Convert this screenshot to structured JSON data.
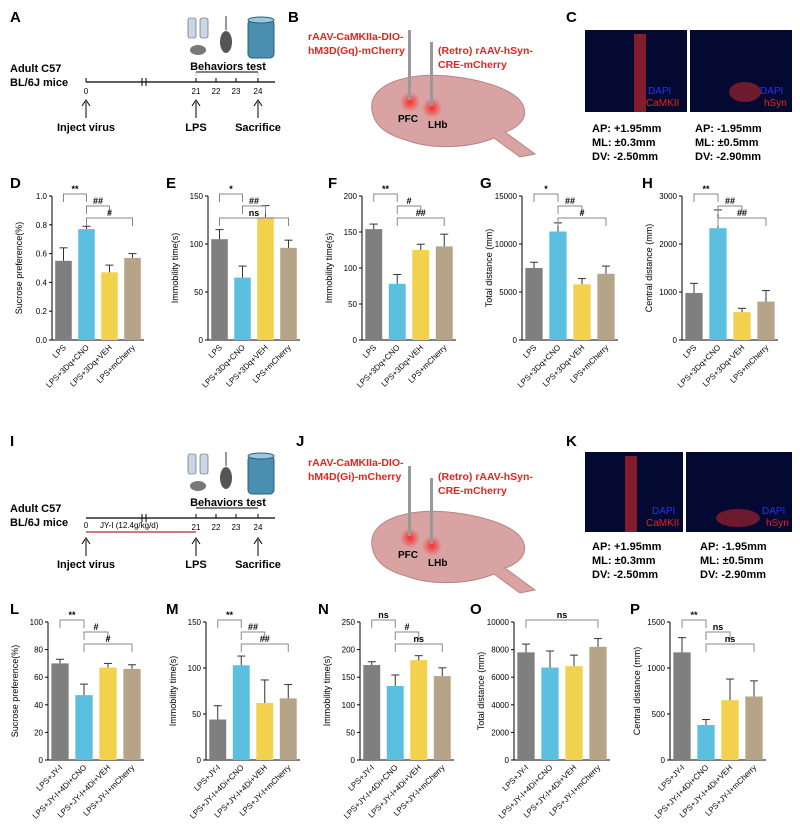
{
  "panel_letters": [
    "A",
    "B",
    "C",
    "D",
    "E",
    "F",
    "G",
    "H",
    "I",
    "J",
    "K",
    "L",
    "M",
    "N",
    "O",
    "P"
  ],
  "timeline_top": {
    "mouse": "Adult C57",
    "mouse2": "BL/6J mice",
    "behaviors": "Behaviors test",
    "days": [
      "0",
      "21",
      "22",
      "23",
      "24"
    ],
    "events": [
      "Inject virus",
      "LPS",
      "Sacrifice"
    ]
  },
  "timeline_bottom": {
    "mouse": "Adult C57",
    "mouse2": "BL/6J mice",
    "behaviors": "Behaviors test",
    "days": [
      "0",
      "21",
      "22",
      "23",
      "24"
    ],
    "drug": "JY-I (12.4g/kg/d)",
    "events": [
      "Inject virus",
      "LPS",
      "Sacrifice"
    ]
  },
  "virus_top": {
    "left1": "rAAV-CaMKIIa-DIO-",
    "left2": "hM3D(Gq)-mCherry",
    "right1": "(Retro) rAAV-hSyn-",
    "right2": "CRE-mCherry",
    "pfc": "PFC",
    "lhb": "LHb"
  },
  "virus_bottom": {
    "left1": "rAAV-CaMKIIa-DIO-",
    "left2": "hM4D(Gi)-mCherry",
    "right1": "(Retro) rAAV-hSyn-",
    "right2": "CRE-mCherry",
    "pfc": "PFC",
    "lhb": "LHb"
  },
  "histo_top": {
    "left_stain": "DAPI",
    "left_marker": "CaMKII",
    "right_stain": "DAPI",
    "right_marker": "hSyn",
    "left_coords": [
      "AP: +1.95mm",
      "ML: ±0.3mm",
      "DV: -2.50mm"
    ],
    "right_coords": [
      "AP: -1.95mm",
      "ML: ±0.5mm",
      "DV: -2.90mm"
    ]
  },
  "histo_bottom": {
    "left_stain": "DAPI",
    "left_marker": "CaMKII",
    "right_stain": "DAPI",
    "right_marker": "hSyn",
    "left_coords": [
      "AP: +1.95mm",
      "ML: ±0.3mm",
      "DV: -2.50mm"
    ],
    "right_coords": [
      "AP: -1.95mm",
      "ML: ±0.5mm",
      "DV: -2.90mm"
    ]
  },
  "colors": {
    "bar1": "#7f7f7f",
    "bar2": "#5bbfe0",
    "bar3": "#f2d24d",
    "bar4": "#b5a487",
    "accent": "#e8231f",
    "dapi": "#2233ff"
  },
  "chart_data": [
    {
      "panel": "D",
      "type": "bar",
      "ylabel": "Sucrose preference(%)",
      "ylim": [
        0,
        1.0
      ],
      "yticks": [
        "0.0",
        "0.2",
        "0.4",
        "0.6",
        "0.8",
        "1.0"
      ],
      "categories": [
        "LPS",
        "LPS+3Dq+CNO",
        "LPS+3Dq+VEH",
        "LPS+mCherry"
      ],
      "values": [
        0.55,
        0.77,
        0.47,
        0.57
      ],
      "errors": [
        0.09,
        0.02,
        0.05,
        0.03
      ],
      "annotations": [
        {
          "from": 0,
          "to": 1,
          "label": "**"
        },
        {
          "from": 1,
          "to": 2,
          "label": "##"
        },
        {
          "from": 1,
          "to": 3,
          "label": "#"
        }
      ]
    },
    {
      "panel": "E",
      "type": "bar",
      "ylabel": "Immobility time(s)",
      "ylim": [
        0,
        150
      ],
      "yticks": [
        "0",
        "50",
        "100",
        "150"
      ],
      "categories": [
        "LPS",
        "LPS+3Dq+CNO",
        "LPS+3Dq+VEH",
        "LPS+mCherry"
      ],
      "values": [
        105,
        65,
        128,
        96
      ],
      "errors": [
        10,
        12,
        12,
        8
      ],
      "annotations": [
        {
          "from": 0,
          "to": 1,
          "label": "*"
        },
        {
          "from": 1,
          "to": 2,
          "label": "##"
        },
        {
          "from": 0,
          "to": 3,
          "label": "ns"
        }
      ]
    },
    {
      "panel": "F",
      "type": "bar",
      "ylabel": "Immobility time(s)",
      "ylim": [
        0,
        200
      ],
      "yticks": [
        "0",
        "50",
        "100",
        "150",
        "200"
      ],
      "categories": [
        "LPS",
        "LPS+3Dq+CNO",
        "LPS+3Dq+VEH",
        "LPS+mCherry"
      ],
      "values": [
        154,
        78,
        125,
        130
      ],
      "errors": [
        7,
        13,
        8,
        17
      ],
      "annotations": [
        {
          "from": 0,
          "to": 1,
          "label": "**"
        },
        {
          "from": 1,
          "to": 2,
          "label": "#"
        },
        {
          "from": 1,
          "to": 3,
          "label": "##"
        }
      ]
    },
    {
      "panel": "G",
      "type": "bar",
      "ylabel": "Total distance (mm)",
      "ylim": [
        0,
        15000
      ],
      "yticks": [
        "0",
        "5000",
        "10000",
        "15000"
      ],
      "categories": [
        "LPS",
        "LPS+3Dq+CNO",
        "LPS+3Dq+VEH",
        "LPS+mCherry"
      ],
      "values": [
        7500,
        11300,
        5800,
        6900
      ],
      "errors": [
        600,
        900,
        600,
        800
      ],
      "annotations": [
        {
          "from": 0,
          "to": 1,
          "label": "*"
        },
        {
          "from": 1,
          "to": 2,
          "label": "##"
        },
        {
          "from": 1,
          "to": 3,
          "label": "#"
        }
      ]
    },
    {
      "panel": "H",
      "type": "bar",
      "ylabel": "Central distance (mm)",
      "ylim": [
        0,
        3000
      ],
      "yticks": [
        "0",
        "1000",
        "2000",
        "3000"
      ],
      "categories": [
        "LPS",
        "LPS+3Dq+CNO",
        "LPS+3Dq+VEH",
        "LPS+mCherry"
      ],
      "values": [
        980,
        2330,
        580,
        800
      ],
      "errors": [
        200,
        380,
        80,
        230
      ],
      "annotations": [
        {
          "from": 0,
          "to": 1,
          "label": "**"
        },
        {
          "from": 1,
          "to": 2,
          "label": "##"
        },
        {
          "from": 1,
          "to": 3,
          "label": "##"
        }
      ]
    },
    {
      "panel": "L",
      "type": "bar",
      "ylabel": "Sucrose preference(%)",
      "ylim": [
        0,
        100
      ],
      "yticks": [
        "0",
        "20",
        "40",
        "60",
        "80",
        "100"
      ],
      "categories": [
        "LPS+JY-I",
        "LPS+JY-I+4Di+CNO",
        "LPS+JY-I+4Di+VEH",
        "LPS+JY-I+mCherry"
      ],
      "values": [
        70,
        47,
        67,
        66
      ],
      "errors": [
        3,
        8,
        3,
        3
      ],
      "annotations": [
        {
          "from": 0,
          "to": 1,
          "label": "**"
        },
        {
          "from": 1,
          "to": 2,
          "label": "#"
        },
        {
          "from": 1,
          "to": 3,
          "label": "#"
        }
      ]
    },
    {
      "panel": "M",
      "type": "bar",
      "ylabel": "Immobility time(s)",
      "ylim": [
        0,
        150
      ],
      "yticks": [
        "0",
        "50",
        "100",
        "150"
      ],
      "categories": [
        "LPS+JY-I",
        "LPS+JY-I+4Di+CNO",
        "LPS+JY-I+4Di+VEH",
        "LPS+JY-I+mCherry"
      ],
      "values": [
        44,
        103,
        62,
        67
      ],
      "errors": [
        15,
        10,
        25,
        15
      ],
      "annotations": [
        {
          "from": 0,
          "to": 1,
          "label": "**"
        },
        {
          "from": 1,
          "to": 2,
          "label": "##"
        },
        {
          "from": 1,
          "to": 3,
          "label": "##"
        }
      ]
    },
    {
      "panel": "N",
      "type": "bar",
      "ylabel": "Immobility time(s)",
      "ylim": [
        0,
        250
      ],
      "yticks": [
        "0",
        "50",
        "100",
        "150",
        "200",
        "250"
      ],
      "categories": [
        "LPS+JY-I",
        "LPS+JY-I+4Di+CNO",
        "LPS+JY-I+4Di+VEH",
        "LPS+JY-I+mCherry"
      ],
      "values": [
        172,
        134,
        181,
        152
      ],
      "errors": [
        6,
        20,
        8,
        15
      ],
      "annotations": [
        {
          "from": 0,
          "to": 1,
          "label": "ns"
        },
        {
          "from": 1,
          "to": 2,
          "label": "#"
        },
        {
          "from": 1,
          "to": 3,
          "label": "ns"
        }
      ]
    },
    {
      "panel": "O",
      "type": "bar",
      "ylabel": "Total distance (mm)",
      "ylim": [
        0,
        10000
      ],
      "yticks": [
        "0",
        "2000",
        "4000",
        "6000",
        "8000",
        "10000"
      ],
      "categories": [
        "LPS+JY-I",
        "LPS+JY-I+4Di+CNO",
        "LPS+JY-I+4Di+VEH",
        "LPS+JY-I+mCherry"
      ],
      "values": [
        7800,
        6700,
        6800,
        8200
      ],
      "errors": [
        600,
        1200,
        800,
        600
      ],
      "annotations": [
        {
          "from": 0,
          "to": 3,
          "label": "ns"
        }
      ]
    },
    {
      "panel": "P",
      "type": "bar",
      "ylabel": "Central distance (mm)",
      "ylim": [
        0,
        1500
      ],
      "yticks": [
        "0",
        "500",
        "1000",
        "1500"
      ],
      "categories": [
        "LPS+JY-I",
        "LPS+JY-I+4Di+CNO",
        "LPS+JY-I+4Di+VEH",
        "LPS+JY-I+mCherry"
      ],
      "values": [
        1170,
        380,
        650,
        690
      ],
      "errors": [
        160,
        60,
        230,
        170
      ],
      "annotations": [
        {
          "from": 0,
          "to": 1,
          "label": "**"
        },
        {
          "from": 1,
          "to": 2,
          "label": "ns"
        },
        {
          "from": 1,
          "to": 3,
          "label": "ns"
        }
      ]
    }
  ]
}
